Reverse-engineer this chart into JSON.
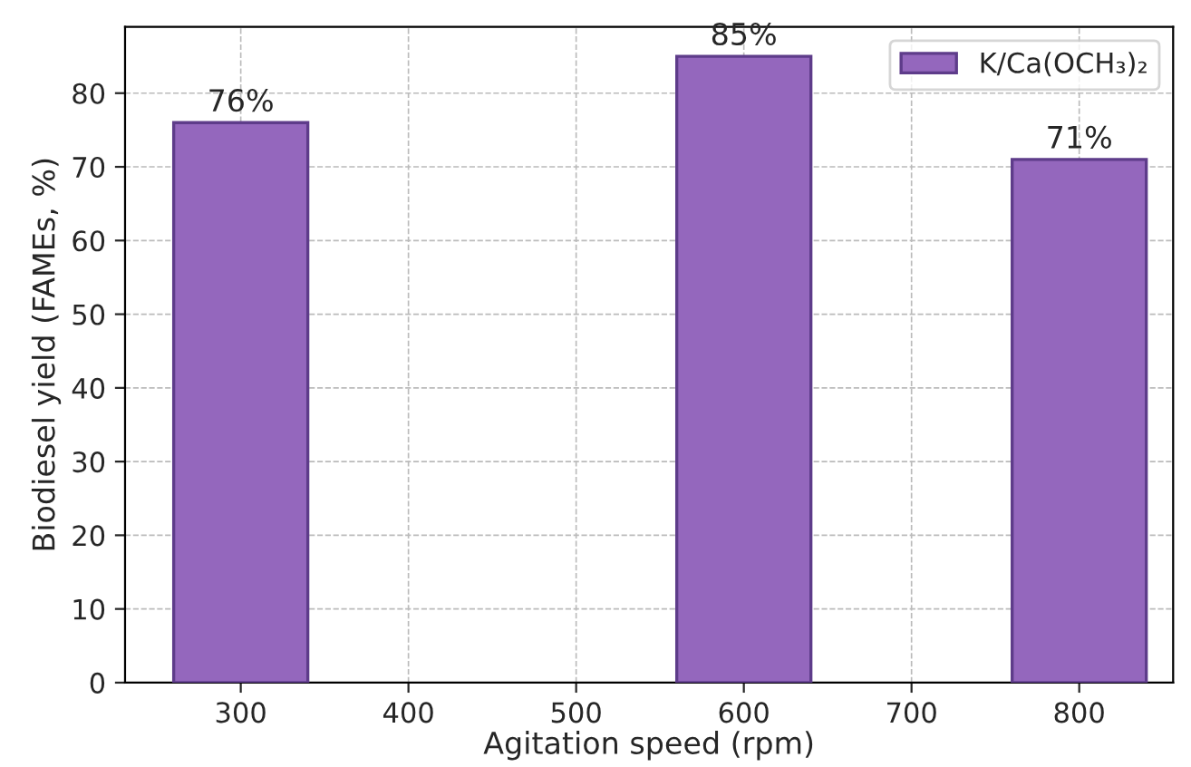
{
  "chart_data": {
    "type": "bar",
    "xlabel": "Agitation speed (rpm)",
    "ylabel": "Biodiesel yield (FAMEs, %)",
    "x": [
      300,
      600,
      800
    ],
    "series": [
      {
        "name": "K/Ca(OCH₃)₂",
        "color": "#9467bd",
        "values": [
          76,
          85,
          71
        ],
        "value_labels": [
          "76%",
          "85%",
          "71%"
        ]
      }
    ],
    "xlim": [
      231,
      856
    ],
    "xticks": [
      300,
      400,
      500,
      600,
      700,
      800
    ],
    "ylim": [
      0,
      89
    ],
    "yticks": [
      0,
      10,
      20,
      30,
      40,
      50,
      60,
      70,
      80
    ],
    "grid": true,
    "legend": "top right"
  }
}
